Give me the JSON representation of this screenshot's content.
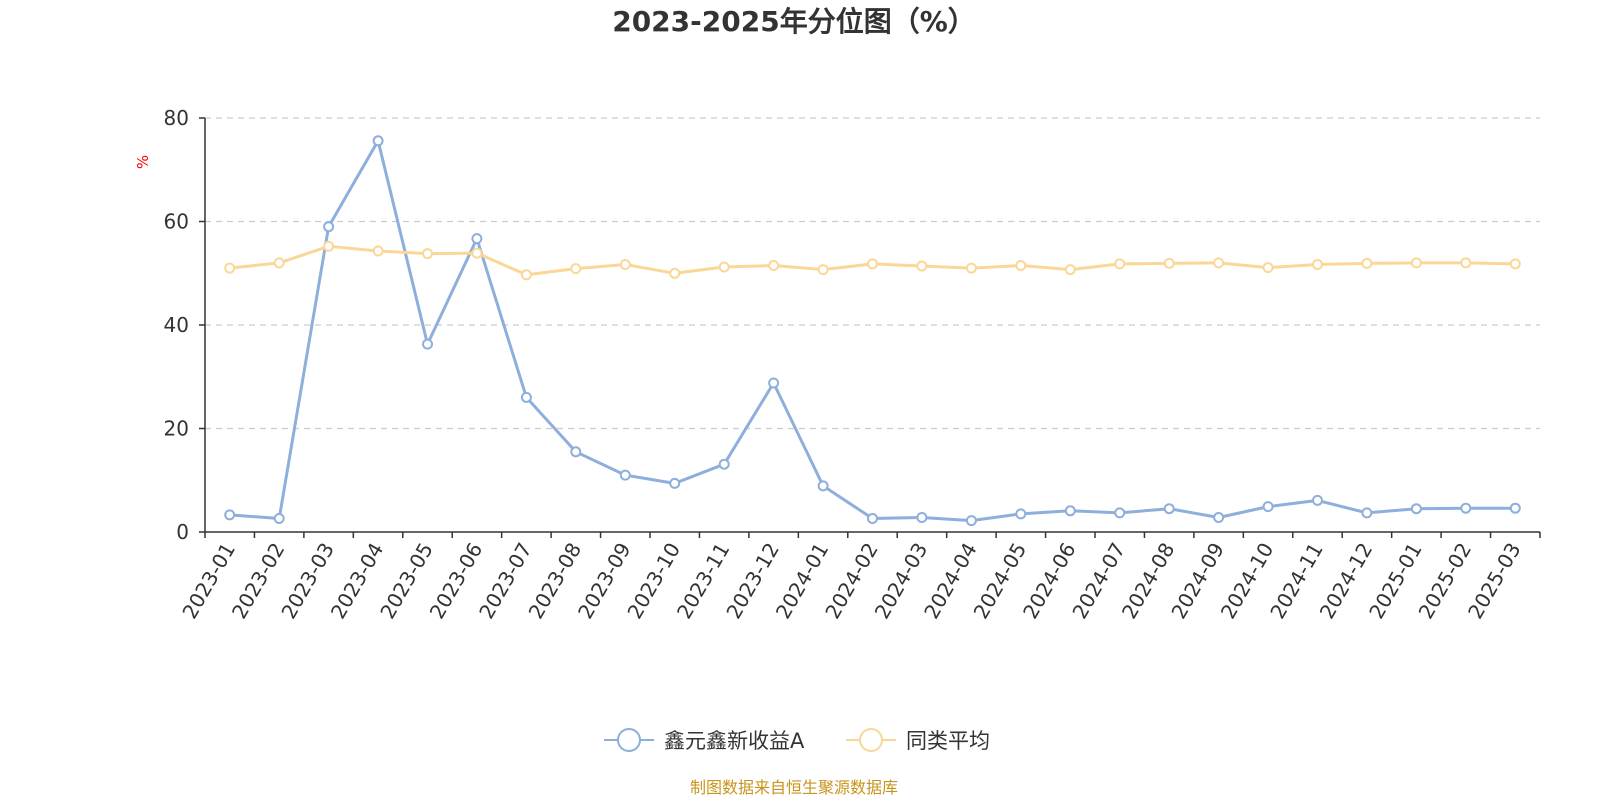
{
  "chart_data": {
    "type": "line",
    "title": "2023-2025年分位图（%）",
    "ylabel": "%",
    "ylim": [
      0,
      80
    ],
    "yticks": [
      0,
      20,
      40,
      60,
      80
    ],
    "grid": true,
    "legend_position": "bottom",
    "categories": [
      "2023-01",
      "2023-02",
      "2023-03",
      "2023-04",
      "2023-05",
      "2023-06",
      "2023-07",
      "2023-08",
      "2023-09",
      "2023-10",
      "2023-11",
      "2023-12",
      "2024-01",
      "2024-02",
      "2024-03",
      "2024-04",
      "2024-05",
      "2024-06",
      "2024-07",
      "2024-08",
      "2024-09",
      "2024-10",
      "2024-11",
      "2024-12",
      "2025-01",
      "2025-02",
      "2025-03"
    ],
    "series": [
      {
        "name": "鑫元鑫新收益A",
        "color": "#8eaedc",
        "values": [
          3.3,
          2.6,
          59,
          75.6,
          36.3,
          56.7,
          26,
          15.5,
          11,
          9.4,
          13.1,
          28.8,
          8.9,
          2.6,
          2.8,
          2.2,
          3.5,
          4.1,
          3.7,
          4.5,
          2.8,
          4.9,
          6.1,
          3.7,
          4.5,
          4.6,
          4.6
        ]
      },
      {
        "name": "同类平均",
        "color": "#fad797",
        "values": [
          51,
          52,
          55.2,
          54.3,
          53.8,
          53.9,
          49.7,
          50.9,
          51.7,
          50,
          51.2,
          51.5,
          50.7,
          51.8,
          51.4,
          51,
          51.5,
          50.7,
          51.8,
          51.9,
          52,
          51.1,
          51.7,
          51.9,
          52,
          52,
          51.8
        ]
      }
    ],
    "source": "制图数据来自恒生聚源数据库"
  }
}
